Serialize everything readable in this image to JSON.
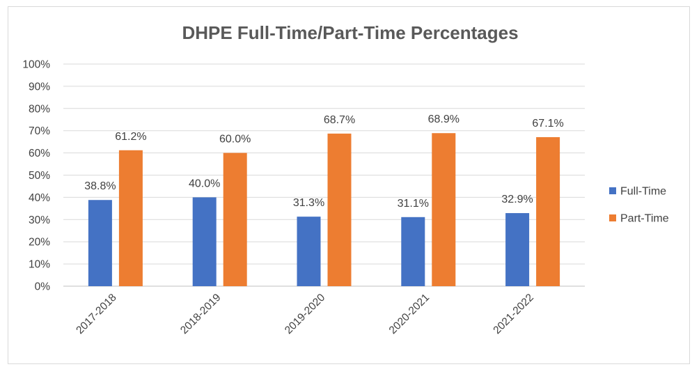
{
  "chart_data": {
    "type": "bar",
    "title": "DHPE Full-Time/Part-Time Percentages",
    "categories": [
      "2017-2018",
      "2018-2019",
      "2019-2020",
      "2020-2021",
      "2021-2022"
    ],
    "series": [
      {
        "name": "Full-Time",
        "color": "#4472c4",
        "values": [
          38.8,
          40.0,
          31.3,
          31.1,
          32.9
        ],
        "labels": [
          "38.8%",
          "40.0%",
          "31.3%",
          "31.1%",
          "32.9%"
        ]
      },
      {
        "name": "Part-Time",
        "color": "#ed7d31",
        "values": [
          61.2,
          60.0,
          68.7,
          68.9,
          67.1
        ],
        "labels": [
          "61.2%",
          "60.0%",
          "68.7%",
          "68.9%",
          "67.1%"
        ]
      }
    ],
    "ylim": [
      0,
      100
    ],
    "yticks": [
      "0%",
      "10%",
      "20%",
      "30%",
      "40%",
      "50%",
      "60%",
      "70%",
      "80%",
      "90%",
      "100%"
    ],
    "grid": true,
    "legend_position": "right"
  }
}
